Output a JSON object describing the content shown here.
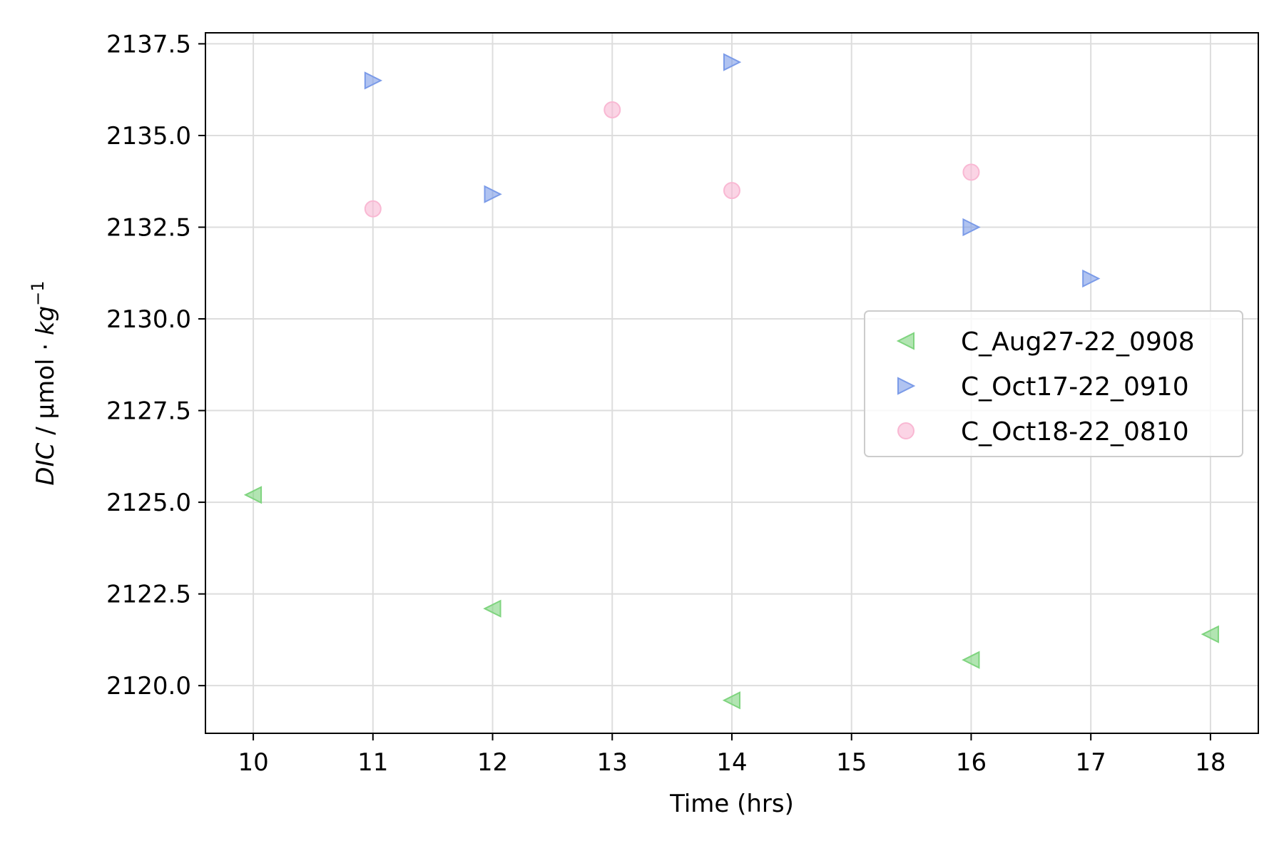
{
  "chart_data": {
    "type": "scatter",
    "title": "",
    "xlabel": "Time (hrs)",
    "ylabel": {
      "italic_prefix": "DIC",
      "unit": " / μmol · ",
      "italic_unit": "kg",
      "superscript": "−1"
    },
    "xlim": [
      9.6,
      18.4
    ],
    "ylim": [
      2118.7,
      2137.8
    ],
    "x_ticks": [
      10,
      11,
      12,
      13,
      14,
      15,
      16,
      17,
      18
    ],
    "x_tick_labels": [
      "10",
      "11",
      "12",
      "13",
      "14",
      "15",
      "16",
      "17",
      "18"
    ],
    "y_ticks": [
      2120.0,
      2122.5,
      2125.0,
      2127.5,
      2130.0,
      2132.5,
      2135.0,
      2137.5
    ],
    "y_tick_labels": [
      "2120.0",
      "2122.5",
      "2125.0",
      "2127.5",
      "2130.0",
      "2132.5",
      "2135.0",
      "2137.5"
    ],
    "grid": true,
    "legend_position": "center-right",
    "series": [
      {
        "name": "C_Aug27-22_0908",
        "marker": "triangle-left",
        "color": "#7fd47f",
        "points": [
          {
            "x": 10,
            "y": 2125.2
          },
          {
            "x": 12,
            "y": 2122.1
          },
          {
            "x": 14,
            "y": 2119.6
          },
          {
            "x": 16,
            "y": 2120.7
          },
          {
            "x": 18,
            "y": 2121.4
          }
        ]
      },
      {
        "name": "C_Oct17-22_0910",
        "marker": "triangle-right",
        "color": "#7b9be8",
        "points": [
          {
            "x": 11,
            "y": 2136.5
          },
          {
            "x": 12,
            "y": 2133.4
          },
          {
            "x": 14,
            "y": 2137.0
          },
          {
            "x": 16,
            "y": 2132.5
          },
          {
            "x": 17,
            "y": 2131.1
          }
        ]
      },
      {
        "name": "C_Oct18-22_0810",
        "marker": "circle",
        "color": "#f9b8d3",
        "points": [
          {
            "x": 11,
            "y": 2133.0
          },
          {
            "x": 13,
            "y": 2135.7
          },
          {
            "x": 14,
            "y": 2133.5
          },
          {
            "x": 16,
            "y": 2134.0
          }
        ]
      }
    ]
  }
}
